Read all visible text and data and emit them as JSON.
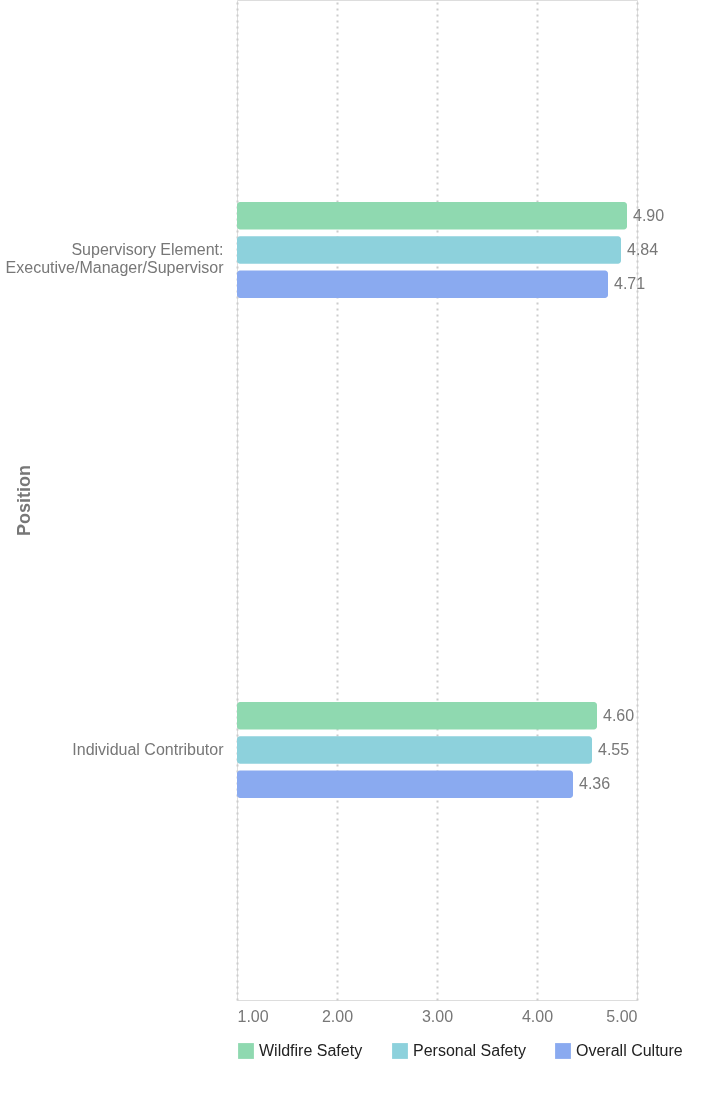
{
  "chart_data": {
    "type": "bar",
    "orientation": "horizontal",
    "ylabel": "Position",
    "categories": [
      "Supervisory Element:\nExecutive/Manager/Supervisor",
      "Individual Contributor"
    ],
    "series": [
      {
        "name": "Wildfire Safety",
        "color": "#8fd9b0",
        "values": [
          4.9,
          4.6
        ],
        "value_labels": [
          "4.90",
          "4.60"
        ]
      },
      {
        "name": "Personal Safety",
        "color": "#8dd1dc",
        "values": [
          4.84,
          4.55
        ],
        "value_labels": [
          "4.84",
          "4.55"
        ]
      },
      {
        "name": "Overall Culture",
        "color": "#8aaaf0",
        "values": [
          4.71,
          4.36
        ],
        "value_labels": [
          "4.71",
          "4.36"
        ]
      }
    ],
    "xlim": [
      1,
      5
    ],
    "xticks": [
      {
        "value": 1,
        "label": "1.00"
      },
      {
        "value": 2,
        "label": "2.00"
      },
      {
        "value": 3,
        "label": "3.00"
      },
      {
        "value": 4,
        "label": "4.00"
      },
      {
        "value": 5,
        "label": "5.00"
      }
    ],
    "grid": "x",
    "legend": "bottom"
  }
}
